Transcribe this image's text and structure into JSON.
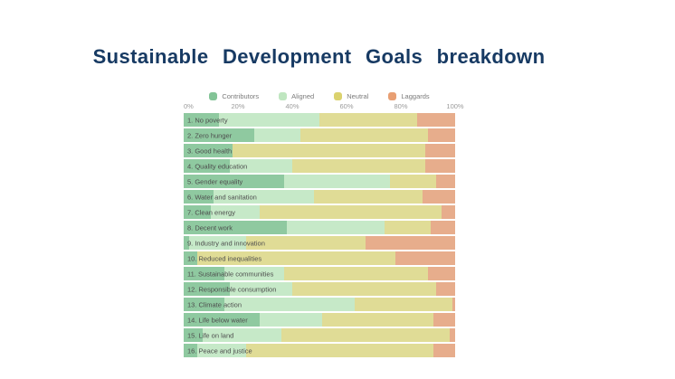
{
  "title": "Sustainable Development Goals breakdown",
  "colors": {
    "title_text": "#173a63",
    "tick_text": "#9b9b9b",
    "bar_label_text": "#4d4d4d",
    "contributors_bar": "#8fc9a0",
    "aligned_bar": "#c6e9c8",
    "neutral_bar": "#e0dc96",
    "laggards_bar": "#e7ad8c",
    "contributors_marker": "#83c497",
    "aligned_marker": "#bfe6c0",
    "neutral_marker": "#dbd26e",
    "laggards_marker": "#e89f73"
  },
  "legend": [
    {
      "label": "Contributors",
      "marker_color": "#83c497"
    },
    {
      "label": "Aligned",
      "marker_color": "#bfe6c0"
    },
    {
      "label": "Neutral",
      "marker_color": "#dbd26e"
    },
    {
      "label": "Laggards",
      "marker_color": "#e89f73"
    }
  ],
  "axis": {
    "ticks": [
      "0%",
      "20%",
      "40%",
      "60%",
      "80%",
      "100%"
    ],
    "positions_pct": [
      0,
      20,
      40,
      60,
      80,
      100
    ]
  },
  "chart_data": {
    "type": "bar",
    "orientation": "horizontal-stacked",
    "unit": "%",
    "xlim": [
      0,
      100
    ],
    "categories": [
      "1. No poverty",
      "2. Zero hunger",
      "3. Good health",
      "4. Quality education",
      "5. Gender equality",
      "6. Water and sanitation",
      "7. Clean energy",
      "8. Decent work",
      "9. Industry and innovation",
      "10. Reduced inequalities",
      "11. Sustainable communities",
      "12. Responsible consumption",
      "13. Climate action",
      "14. Life below water",
      "15. Life on land",
      "16. Peace and justice"
    ],
    "series": [
      {
        "name": "Contributors",
        "color": "#8fc9a0",
        "values": [
          13,
          26,
          18,
          17,
          37,
          11,
          10,
          38,
          2,
          5,
          15,
          17,
          15,
          28,
          7,
          5
        ]
      },
      {
        "name": "Aligned",
        "color": "#c6e9c8",
        "values": [
          37,
          17,
          0,
          23,
          39,
          37,
          18,
          36,
          21,
          0,
          22,
          23,
          48,
          23,
          29,
          18
        ]
      },
      {
        "name": "Neutral",
        "color": "#e0dc96",
        "values": [
          36,
          47,
          71,
          49,
          17,
          40,
          67,
          17,
          44,
          73,
          53,
          53,
          36,
          41,
          62,
          69
        ]
      },
      {
        "name": "Laggards",
        "color": "#e7ad8c",
        "values": [
          14,
          10,
          11,
          11,
          7,
          12,
          5,
          9,
          33,
          22,
          10,
          7,
          1,
          8,
          2,
          8
        ]
      }
    ],
    "title": "Sustainable Development Goals breakdown",
    "legend_position": "top-center",
    "grid": false
  }
}
